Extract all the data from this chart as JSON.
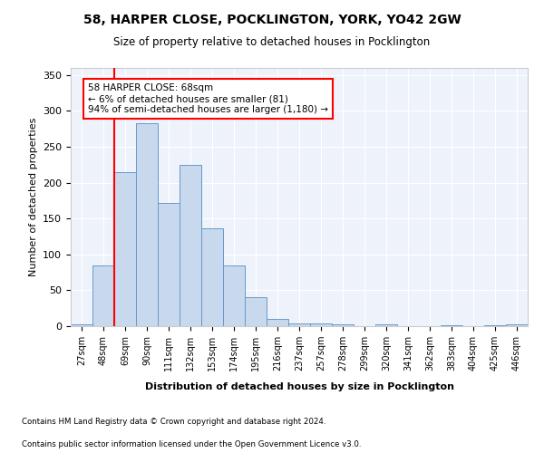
{
  "title": "58, HARPER CLOSE, POCKLINGTON, YORK, YO42 2GW",
  "subtitle": "Size of property relative to detached houses in Pocklington",
  "xlabel": "Distribution of detached houses by size in Pocklington",
  "ylabel": "Number of detached properties",
  "bar_color": "#c8d9ee",
  "bar_edge_color": "#6699cc",
  "background_color": "#eef3fb",
  "grid_color": "#ffffff",
  "categories": [
    "27sqm",
    "48sqm",
    "69sqm",
    "90sqm",
    "111sqm",
    "132sqm",
    "153sqm",
    "174sqm",
    "195sqm",
    "216sqm",
    "237sqm",
    "257sqm",
    "278sqm",
    "299sqm",
    "320sqm",
    "341sqm",
    "362sqm",
    "383sqm",
    "404sqm",
    "425sqm",
    "446sqm"
  ],
  "values": [
    3,
    85,
    215,
    283,
    172,
    225,
    136,
    85,
    40,
    10,
    4,
    4,
    2,
    0,
    3,
    0,
    0,
    1,
    0,
    1,
    2
  ],
  "annotation_text_lines": [
    "58 HARPER CLOSE: 68sqm",
    "← 6% of detached houses are smaller (81)",
    "94% of semi-detached houses are larger (1,180) →"
  ],
  "vline_x_index": 1.5,
  "ylim": [
    0,
    360
  ],
  "yticks": [
    0,
    50,
    100,
    150,
    200,
    250,
    300,
    350
  ],
  "footer_line1": "Contains HM Land Registry data © Crown copyright and database right 2024.",
  "footer_line2": "Contains public sector information licensed under the Open Government Licence v3.0."
}
